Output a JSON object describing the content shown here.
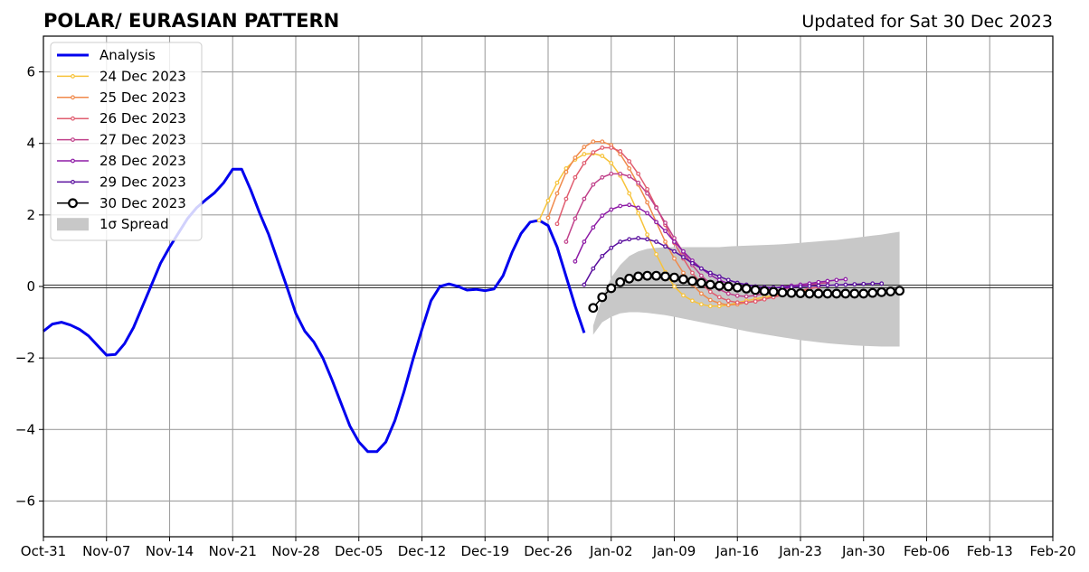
{
  "chart_data": {
    "type": "line",
    "title": "POLAR/ EURASIAN  PATTERN",
    "subtitle": "Updated for Sat 30 Dec 2023",
    "xlabel": "",
    "ylabel": "",
    "x_start": "2023-10-31",
    "x_end": "2024-02-20",
    "x_tick_labels": [
      "Oct-31",
      "Nov-07",
      "Nov-14",
      "Nov-21",
      "Nov-28",
      "Dec-05",
      "Dec-12",
      "Dec-19",
      "Dec-26",
      "Jan-02",
      "Jan-09",
      "Jan-16",
      "Jan-23",
      "Jan-30",
      "Feb-06",
      "Feb-13",
      "Feb-20"
    ],
    "ylim": [
      -7,
      7
    ],
    "y_ticks": [
      -6,
      -4,
      -2,
      0,
      2,
      4,
      6
    ],
    "y_tick_labels": [
      "−6",
      "−4",
      "−2",
      "0",
      "2",
      "4",
      "6"
    ],
    "grid": true,
    "legend_position": "upper-left",
    "analysis": {
      "name": "Analysis",
      "color": "#0000ee",
      "x_start": "2023-10-31",
      "values": [
        -1.25,
        -1.05,
        -1.0,
        -1.08,
        -1.2,
        -1.38,
        -1.65,
        -1.92,
        -1.9,
        -1.6,
        -1.15,
        -0.55,
        0.05,
        0.65,
        1.1,
        1.5,
        1.9,
        2.2,
        2.42,
        2.62,
        2.9,
        3.28,
        3.28,
        2.7,
        2.05,
        1.45,
        0.72,
        0.0,
        -0.75,
        -1.25,
        -1.55,
        -2.0,
        -2.6,
        -3.25,
        -3.9,
        -4.35,
        -4.62,
        -4.62,
        -4.35,
        -3.75,
        -2.95,
        -2.05,
        -1.2,
        -0.4,
        0.0,
        0.07,
        0.0,
        -0.1,
        -0.08,
        -0.12,
        -0.07,
        0.3,
        0.95,
        1.48,
        1.8,
        1.85,
        1.7,
        1.1,
        0.28,
        -0.55,
        -1.3
      ]
    },
    "series": [
      {
        "name": "24 Dec 2023",
        "color": "#f7c33b",
        "x_start": "2023-12-25",
        "values": [
          1.85,
          2.4,
          2.9,
          3.3,
          3.55,
          3.7,
          3.72,
          3.65,
          3.45,
          3.1,
          2.6,
          2.05,
          1.45,
          0.9,
          0.4,
          0.0,
          -0.25,
          -0.4,
          -0.5,
          -0.55,
          -0.55,
          -0.52,
          -0.45,
          -0.4,
          -0.35,
          -0.3,
          -0.25,
          -0.2,
          -0.18,
          -0.15,
          -0.12
        ]
      },
      {
        "name": "25 Dec 2023",
        "color": "#f08a4b",
        "x_start": "2023-12-26",
        "values": [
          1.92,
          2.6,
          3.2,
          3.6,
          3.9,
          4.05,
          4.05,
          3.95,
          3.7,
          3.3,
          2.85,
          2.35,
          1.8,
          1.25,
          0.78,
          0.38,
          0.05,
          -0.2,
          -0.38,
          -0.47,
          -0.52,
          -0.5,
          -0.45,
          -0.4,
          -0.35,
          -0.28,
          -0.22,
          -0.18,
          -0.12,
          -0.08
        ]
      },
      {
        "name": "26 Dec 2023",
        "color": "#e05c6f",
        "x_start": "2023-12-27",
        "values": [
          1.75,
          2.45,
          3.05,
          3.45,
          3.75,
          3.88,
          3.88,
          3.78,
          3.5,
          3.15,
          2.72,
          2.22,
          1.72,
          1.22,
          0.78,
          0.38,
          0.08,
          -0.15,
          -0.3,
          -0.4,
          -0.45,
          -0.45,
          -0.42,
          -0.36,
          -0.3,
          -0.24,
          -0.18,
          -0.12,
          -0.06,
          -0.02
        ]
      },
      {
        "name": "27 Dec 2023",
        "color": "#c0408a",
        "x_start": "2023-12-28",
        "values": [
          1.25,
          1.9,
          2.45,
          2.85,
          3.05,
          3.15,
          3.15,
          3.08,
          2.9,
          2.6,
          2.2,
          1.78,
          1.35,
          0.95,
          0.6,
          0.3,
          0.08,
          -0.08,
          -0.2,
          -0.26,
          -0.28,
          -0.25,
          -0.2,
          -0.14,
          -0.08,
          -0.03,
          0.02,
          0.05,
          0.08,
          0.1
        ]
      },
      {
        "name": "28 Dec 2023",
        "color": "#8e1ba6",
        "x_start": "2023-12-29",
        "values": [
          0.7,
          1.25,
          1.65,
          1.98,
          2.15,
          2.25,
          2.28,
          2.2,
          2.05,
          1.8,
          1.55,
          1.25,
          0.98,
          0.72,
          0.5,
          0.32,
          0.18,
          0.08,
          0.0,
          -0.05,
          -0.08,
          -0.06,
          -0.04,
          -0.01,
          0.02,
          0.05,
          0.08,
          0.12,
          0.15,
          0.18,
          0.2
        ]
      },
      {
        "name": "29 Dec 2023",
        "color": "#5a0f9e",
        "x_start": "2023-12-30",
        "values": [
          0.05,
          0.5,
          0.85,
          1.08,
          1.25,
          1.32,
          1.35,
          1.32,
          1.25,
          1.12,
          0.98,
          0.82,
          0.65,
          0.5,
          0.38,
          0.28,
          0.18,
          0.1,
          0.05,
          0.0,
          -0.02,
          -0.03,
          -0.03,
          -0.02,
          0.0,
          0.01,
          0.02,
          0.03,
          0.04,
          0.05,
          0.06,
          0.07,
          0.08,
          0.08
        ]
      },
      {
        "name": "30 Dec 2023",
        "color": "#000000",
        "x_start": "2023-12-31",
        "values": [
          -0.6,
          -0.3,
          -0.05,
          0.12,
          0.22,
          0.28,
          0.3,
          0.3,
          0.28,
          0.25,
          0.2,
          0.15,
          0.1,
          0.05,
          0.02,
          0.0,
          -0.03,
          -0.06,
          -0.1,
          -0.13,
          -0.15,
          -0.17,
          -0.18,
          -0.19,
          -0.2,
          -0.2,
          -0.2,
          -0.2,
          -0.2,
          -0.2,
          -0.2,
          -0.18,
          -0.16,
          -0.14,
          -0.12
        ]
      }
    ],
    "spread": {
      "name": "1σ Spread",
      "color": "#c8c8c8",
      "x_start": "2023-12-31",
      "upper": [
        -1.1,
        -0.3,
        0.25,
        0.6,
        0.85,
        0.98,
        1.05,
        1.08,
        1.1,
        1.1,
        1.1,
        1.1,
        1.1,
        1.1,
        1.1,
        1.12,
        1.13,
        1.14,
        1.15,
        1.16,
        1.17,
        1.18,
        1.2,
        1.22,
        1.24,
        1.26,
        1.28,
        1.3,
        1.33,
        1.36,
        1.39,
        1.42,
        1.45,
        1.49,
        1.53
      ],
      "lower": [
        -1.35,
        -1.0,
        -0.85,
        -0.75,
        -0.72,
        -0.72,
        -0.74,
        -0.77,
        -0.8,
        -0.85,
        -0.9,
        -0.95,
        -1.0,
        -1.05,
        -1.1,
        -1.15,
        -1.2,
        -1.25,
        -1.3,
        -1.34,
        -1.38,
        -1.42,
        -1.46,
        -1.5,
        -1.53,
        -1.56,
        -1.59,
        -1.61,
        -1.63,
        -1.65,
        -1.66,
        -1.67,
        -1.68,
        -1.68,
        -1.68
      ]
    }
  }
}
